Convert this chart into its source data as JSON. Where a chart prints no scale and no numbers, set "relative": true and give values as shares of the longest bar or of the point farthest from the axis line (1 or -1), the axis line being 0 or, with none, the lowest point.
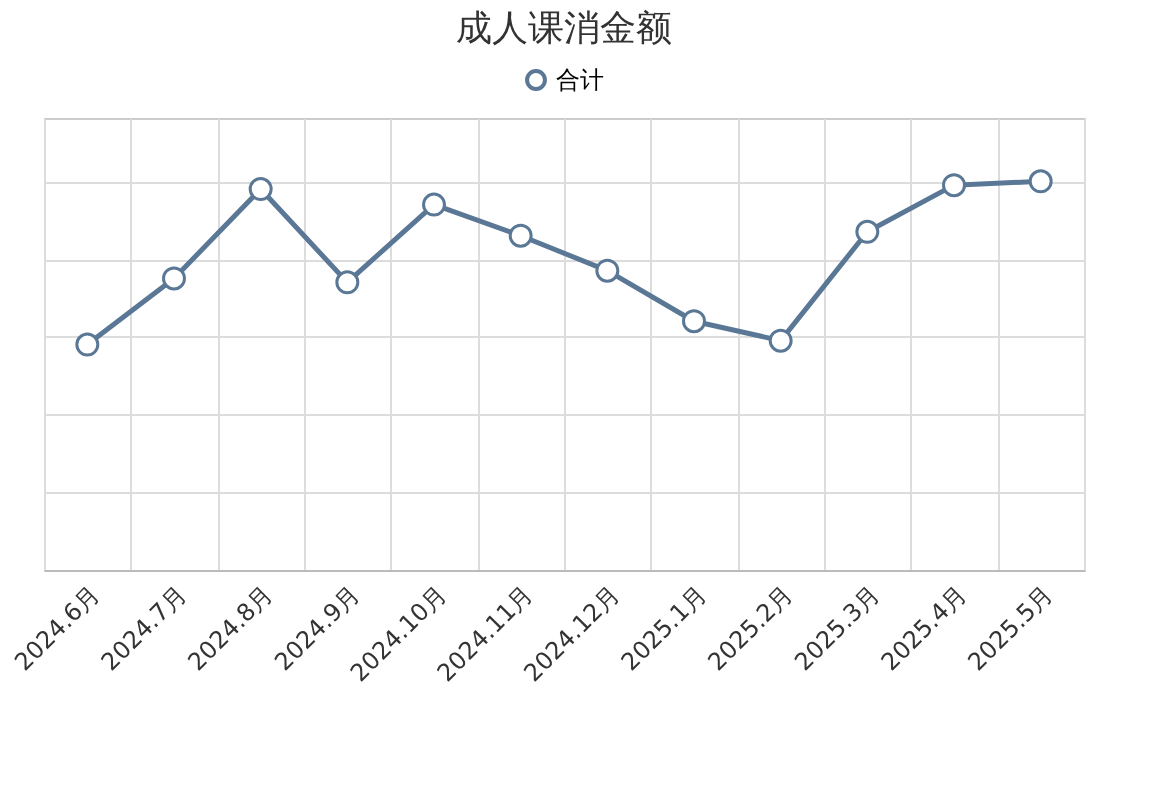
{
  "chart_data": {
    "type": "line",
    "title": "成人课消金额",
    "relative": true,
    "categories": [
      "2024.6月",
      "2024.7月",
      "2024.8月",
      "2024.9月",
      "2024.10月",
      "2024.11月",
      "2024.12月",
      "2025.1月",
      "2025.2月",
      "2025.3月",
      "2025.4月",
      "2025.5月"
    ],
    "series": [
      {
        "name": "合计",
        "color": "#5a7896",
        "values": [
          0.58,
          0.75,
          0.98,
          0.74,
          0.94,
          0.86,
          0.77,
          0.64,
          0.59,
          0.87,
          0.99,
          1
        ]
      }
    ],
    "grid": true,
    "legend": "top",
    "marker": "circle",
    "line_style": "solid"
  }
}
